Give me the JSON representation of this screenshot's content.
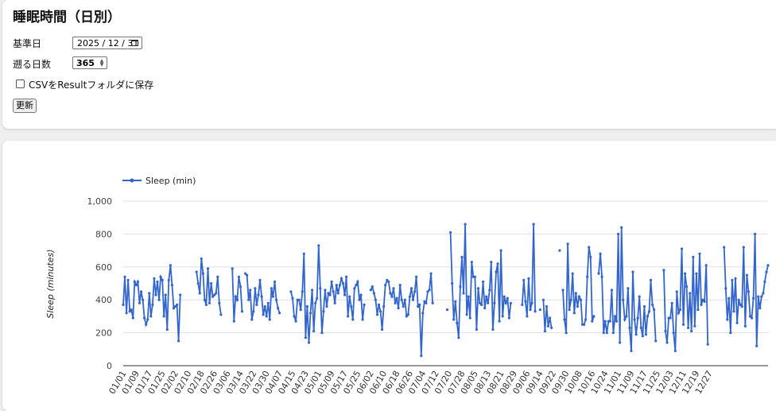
{
  "page": {
    "title": "睡眠時間（日別）",
    "base_date_label": "基準日",
    "base_date_value": "2025 / 12 / 31",
    "days_label": "遡る日数",
    "days_value": "365",
    "csv_checkbox_label": "CSVをResultフォルダに保存",
    "csv_checked": false,
    "update_button": "更新"
  },
  "colors": {
    "series": "#3366cc",
    "grid": "#e0e0e0"
  },
  "chart_data": {
    "type": "line",
    "legend": "Sleep (min)",
    "legend_position": "top-left",
    "ylabel": "Sleep (minutes)",
    "ylim": [
      0,
      1000
    ],
    "yticks": [
      "0",
      "200",
      "400",
      "600",
      "800",
      "1,000"
    ],
    "grid": true,
    "xtick_labels": [
      "01/01",
      "01/09",
      "01/17",
      "01/25",
      "02/02",
      "02/10",
      "02/18",
      "02/26",
      "03/06",
      "03/14",
      "03/22",
      "03/30",
      "04/07",
      "04/15",
      "04/23",
      "05/01",
      "05/09",
      "05/17",
      "05/25",
      "06/02",
      "06/10",
      "06/18",
      "06/26",
      "07/04",
      "07/12",
      "07/20",
      "07/28",
      "08/05",
      "08/13",
      "08/21",
      "08/29",
      "09/06",
      "09/14",
      "09/22",
      "09/30",
      "10/08",
      "10/16",
      "10/24",
      "11/01",
      "11/09",
      "11/17",
      "11/25",
      "12/03",
      "12/11",
      "12/19",
      "12/27"
    ],
    "x_start": "2025-01-01",
    "x_end": "2025-12-31",
    "values": [
      370,
      540,
      320,
      520,
      330,
      340,
      290,
      510,
      490,
      510,
      380,
      450,
      400,
      290,
      250,
      280,
      440,
      300,
      370,
      530,
      430,
      510,
      400,
      540,
      520,
      300,
      430,
      220,
      520,
      610,
      490,
      350,
      360,
      370,
      150,
      430,
      null,
      null,
      null,
      null,
      null,
      null,
      null,
      null,
      null,
      570,
      500,
      440,
      650,
      560,
      400,
      370,
      590,
      380,
      500,
      420,
      430,
      440,
      540,
      380,
      310,
      null,
      null,
      null,
      null,
      null,
      null,
      590,
      270,
      420,
      400,
      540,
      480,
      330,
      null,
      560,
      550,
      400,
      460,
      280,
      330,
      470,
      370,
      430,
      520,
      420,
      310,
      360,
      300,
      380,
      280,
      470,
      420,
      510,
      400,
      350,
      320,
      null,
      null,
      null,
      null,
      null,
      null,
      450,
      410,
      300,
      270,
      400,
      400,
      340,
      450,
      680,
      170,
      360,
      140,
      320,
      460,
      210,
      380,
      410,
      730,
      470,
      200,
      330,
      460,
      360,
      440,
      430,
      510,
      450,
      380,
      490,
      440,
      490,
      530,
      500,
      430,
      540,
      300,
      420,
      360,
      280,
      470,
      490,
      510,
      400,
      430,
      280,
      370,
      null,
      null,
      null,
      460,
      480,
      440,
      400,
      310,
      370,
      330,
      220,
      360,
      490,
      520,
      510,
      440,
      420,
      470,
      380,
      410,
      350,
      490,
      400,
      360,
      400,
      300,
      310,
      420,
      470,
      400,
      450,
      540,
      360,
      370,
      60,
      320,
      390,
      380,
      450,
      460,
      560,
      380,
      null,
      null,
      null,
      null,
      null,
      null,
      null,
      null,
      340,
      null,
      810,
      500,
      280,
      390,
      260,
      170,
      480,
      660,
      440,
      860,
      310,
      420,
      290,
      630,
      540,
      540,
      220,
      470,
      380,
      370,
      510,
      350,
      420,
      380,
      460,
      630,
      220,
      380,
      570,
      620,
      270,
      700,
      300,
      420,
      380,
      410,
      290,
      380,
      null,
      null,
      null,
      null,
      null,
      null,
      370,
      520,
      390,
      300,
      530,
      340,
      380,
      860,
      330,
      null,
      null,
      340,
      null,
      400,
      210,
      360,
      240,
      290,
      230,
      null,
      null,
      null,
      null,
      700,
      null,
      460,
      280,
      200,
      740,
      340,
      400,
      560,
      320,
      440,
      360,
      420,
      400,
      250,
      250,
      280,
      540,
      720,
      660,
      270,
      300,
      null,
      null,
      560,
      680,
      540,
      200,
      270,
      200,
      270,
      270,
      460,
      200,
      300,
      270,
      800,
      140,
      840,
      400,
      280,
      300,
      470,
      230,
      90,
      570,
      280,
      190,
      290,
      420,
      230,
      180,
      360,
      190,
      300,
      330,
      520,
      370,
      340,
      150,
      null,
      null,
      null,
      null,
      580,
      210,
      140,
      290,
      290,
      380,
      200,
      90,
      450,
      320,
      340,
      710,
      250,
      560,
      480,
      230,
      440,
      210,
      660,
      240,
      560,
      340,
      680,
      370,
      400,
      390,
      610,
      130,
      null,
      null,
      null,
      null,
      null,
      null,
      null,
      null,
      null,
      720,
      470,
      280,
      410,
      200,
      520,
      330,
      530,
      260,
      400,
      370,
      360,
      720,
      240,
      550,
      450,
      300,
      290,
      410,
      800,
      120,
      420,
      350,
      420,
      440,
      510,
      570,
      610
    ]
  }
}
